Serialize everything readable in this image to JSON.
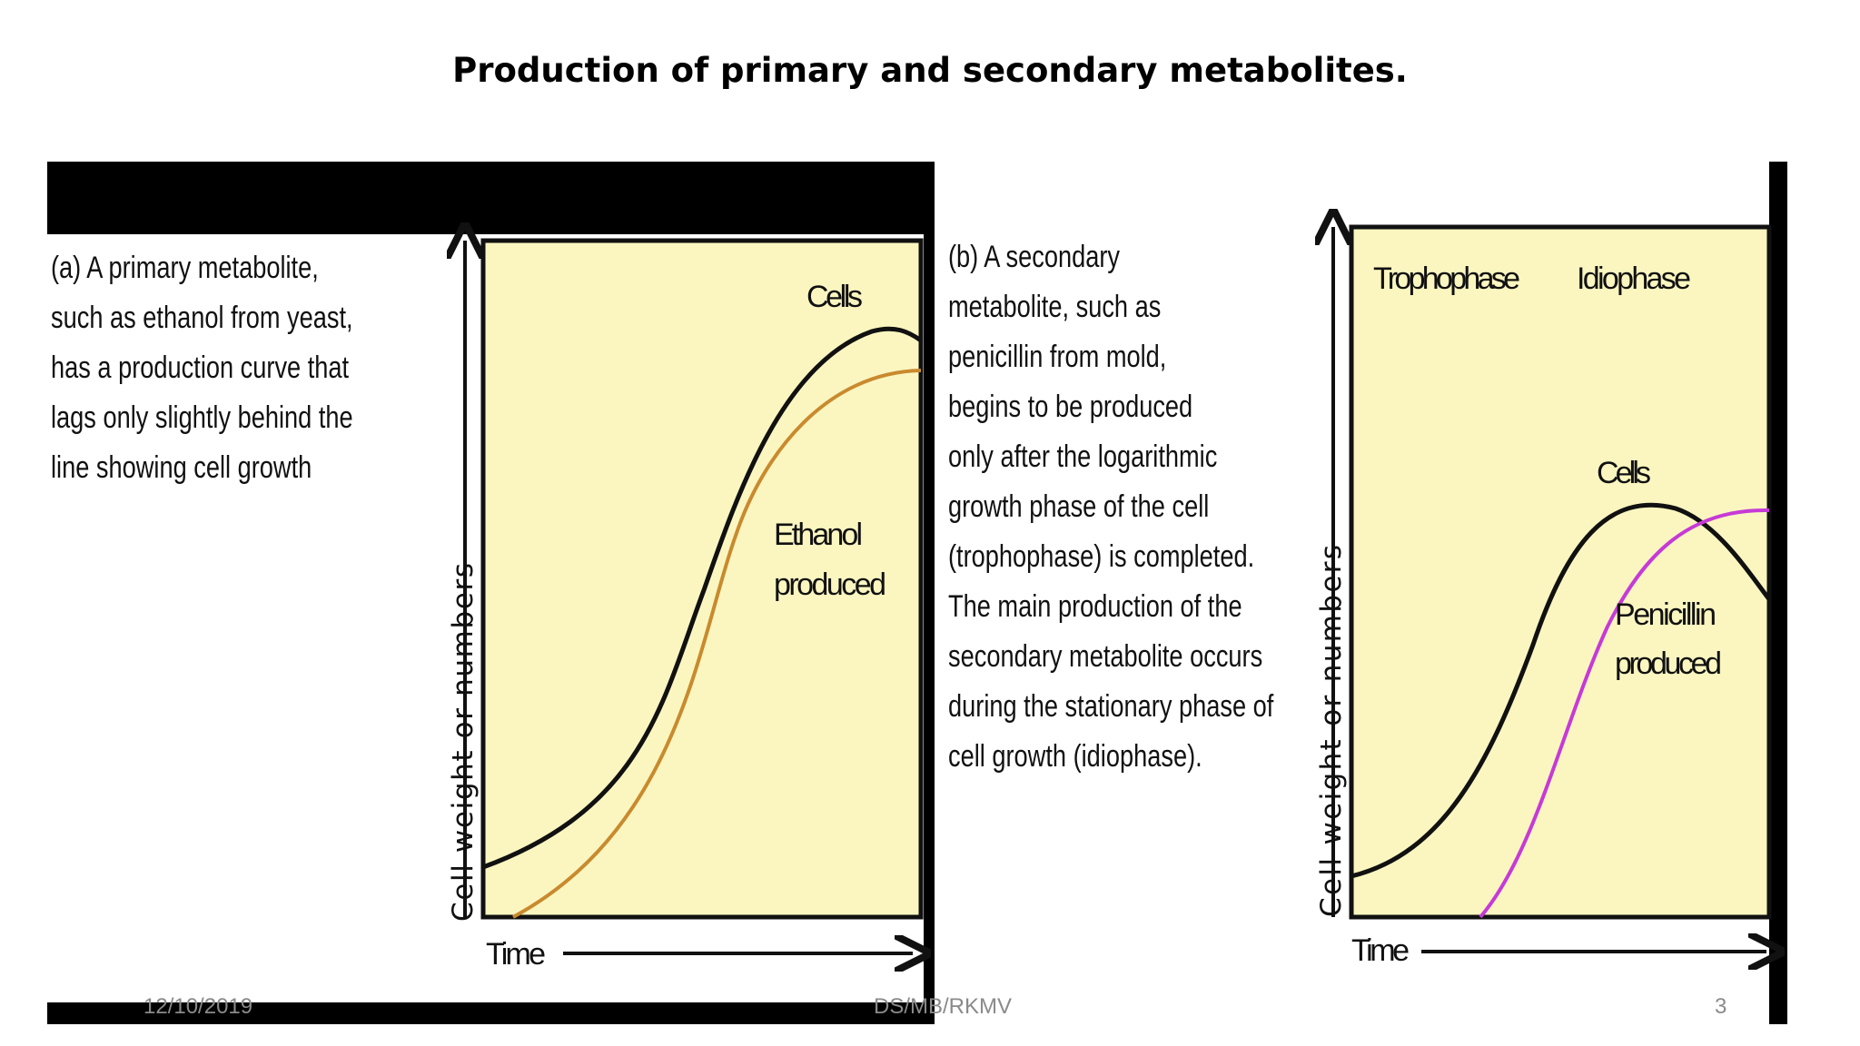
{
  "slide": {
    "title": "Production of primary and secondary metabolites."
  },
  "panel_a": {
    "caption_lines": [
      "(a) A primary metabolite,",
      "such as ethanol from yeast,",
      "has a production curve that",
      "lags only slightly behind the",
      "line showing cell growth"
    ],
    "y_axis_label": "Cell weight or numbers",
    "x_axis_label": "Time",
    "curve_labels": {
      "cells": "Cells",
      "ethanol_1": "Ethanol",
      "ethanol_2": "produced"
    },
    "colors": {
      "plot_bg": "#fbf6c0",
      "cells": "#111111",
      "ethanol": "#c98a2e"
    }
  },
  "panel_b": {
    "caption_lines": [
      "(b) A secondary",
      "metabolite, such as",
      "penicillin from mold,",
      "begins to be produced",
      "only after the logarithmic",
      "growth phase of the cell",
      "(trophophase) is completed.",
      "The main production of the",
      "secondary metabolite occurs",
      "during the stationary phase of",
      "cell growth (idiophase)."
    ],
    "y_axis_label": "Cell weight or numbers",
    "x_axis_label": "Time",
    "phase_labels": {
      "trophophase": "Trophophase",
      "idiophase": "Idiophase"
    },
    "curve_labels": {
      "cells": "Cells",
      "penicillin_1": "Penicillin",
      "penicillin_2": "produced"
    },
    "colors": {
      "plot_bg": "#fbf6c0",
      "cells": "#111111",
      "penicillin": "#c63ad6"
    }
  },
  "footer": {
    "date": "12/10/2019",
    "author": "DS/MB/RKMV",
    "page_number": "3"
  }
}
